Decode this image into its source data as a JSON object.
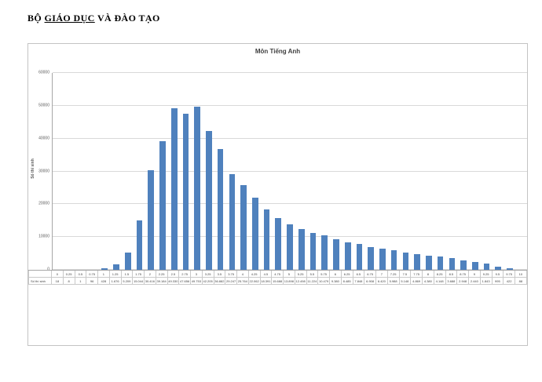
{
  "header": {
    "prefix": "BỘ",
    "underlined": "GIÁO DỤC",
    "suffix": "VÀ ĐÀO TẠO"
  },
  "chart_data": {
    "type": "bar",
    "title": "Môn Tiếng Anh",
    "ylabel": "Số thí sinh",
    "series_name": "Số thí sinh",
    "xlabel": "",
    "ylim": [
      0,
      60000
    ],
    "ytick_step": 10000,
    "grid": true,
    "legend_position": "none",
    "bar_color": "#4f81bd",
    "gridline_color": "#d9d9d9",
    "categories": [
      "0",
      "0.25",
      "0.5",
      "0.75",
      "1",
      "1.25",
      "1.5",
      "1.75",
      "2",
      "2.25",
      "2.5",
      "2.75",
      "3",
      "3.25",
      "3.5",
      "3.75",
      "4",
      "4.25",
      "4.5",
      "4.75",
      "5",
      "5.25",
      "5.5",
      "5.75",
      "6",
      "6.25",
      "6.5",
      "6.75",
      "7",
      "7.25",
      "7.5",
      "7.75",
      "8",
      "8.25",
      "8.5",
      "8.75",
      "9",
      "9.25",
      "9.5",
      "9.75",
      "10"
    ],
    "values": [
      18,
      8,
      1,
      96,
      428,
      1676,
      5209,
      15044,
      30416,
      39184,
      49330,
      47656,
      49753,
      42205,
      36882,
      29247,
      25764,
      22062,
      18391,
      15688,
      13898,
      12498,
      11224,
      10479,
      9380,
      8485,
      7848,
      6908,
      6420,
      5988,
      5148,
      4869,
      4380,
      4148,
      3688,
      2948,
      2440,
      1843,
      995,
      422,
      88
    ]
  }
}
